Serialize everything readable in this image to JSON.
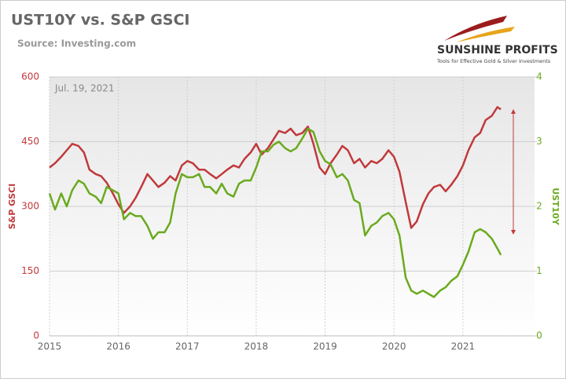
{
  "chart_data": {
    "type": "line",
    "title": "UST10Y vs. S&P GSCI",
    "subtitle": "Source: Investing.com",
    "annotation": "Jul. 19, 2021",
    "logo": {
      "name": "SUNSHINE PROFITS",
      "tagline": "Tools for Effective Gold & Silver Investments"
    },
    "ylabel": "S&P GSCI",
    "y2label": "UST10Y",
    "x": [
      2015.0,
      2015.08,
      2015.17,
      2015.25,
      2015.33,
      2015.42,
      2015.5,
      2015.58,
      2015.67,
      2015.75,
      2015.83,
      2015.92,
      2016.0,
      2016.08,
      2016.17,
      2016.25,
      2016.33,
      2016.42,
      2016.5,
      2016.58,
      2016.67,
      2016.75,
      2016.83,
      2016.92,
      2017.0,
      2017.08,
      2017.17,
      2017.25,
      2017.33,
      2017.42,
      2017.5,
      2017.58,
      2017.67,
      2017.75,
      2017.83,
      2017.92,
      2018.0,
      2018.08,
      2018.17,
      2018.25,
      2018.33,
      2018.42,
      2018.5,
      2018.58,
      2018.67,
      2018.75,
      2018.83,
      2018.92,
      2019.0,
      2019.08,
      2019.17,
      2019.25,
      2019.33,
      2019.42,
      2019.5,
      2019.58,
      2019.67,
      2019.75,
      2019.83,
      2019.92,
      2020.0,
      2020.08,
      2020.17,
      2020.25,
      2020.33,
      2020.42,
      2020.5,
      2020.58,
      2020.67,
      2020.75,
      2020.83,
      2020.92,
      2021.0,
      2021.08,
      2021.17,
      2021.25,
      2021.33,
      2021.42,
      2021.5,
      2021.55
    ],
    "series": [
      {
        "name": "S&P GSCI",
        "color": "#c0393b",
        "axis": "y",
        "values": [
          390,
          400,
          415,
          430,
          445,
          440,
          425,
          385,
          375,
          370,
          355,
          330,
          305,
          285,
          300,
          320,
          345,
          375,
          360,
          345,
          355,
          370,
          360,
          395,
          405,
          400,
          385,
          385,
          375,
          365,
          375,
          385,
          395,
          390,
          410,
          425,
          445,
          420,
          435,
          455,
          475,
          470,
          480,
          465,
          470,
          485,
          445,
          390,
          375,
          400,
          420,
          440,
          430,
          400,
          410,
          390,
          405,
          400,
          410,
          430,
          415,
          380,
          310,
          250,
          265,
          305,
          330,
          345,
          350,
          335,
          350,
          370,
          395,
          430,
          460,
          470,
          500,
          510,
          530,
          525
        ]
      },
      {
        "name": "UST10Y",
        "color": "#6aaa1e",
        "axis": "y2",
        "values": [
          2.2,
          1.95,
          2.2,
          2.0,
          2.25,
          2.4,
          2.35,
          2.2,
          2.15,
          2.05,
          2.3,
          2.25,
          2.2,
          1.8,
          1.9,
          1.85,
          1.85,
          1.7,
          1.5,
          1.6,
          1.6,
          1.75,
          2.2,
          2.5,
          2.45,
          2.45,
          2.5,
          2.3,
          2.3,
          2.2,
          2.35,
          2.2,
          2.15,
          2.35,
          2.4,
          2.4,
          2.6,
          2.85,
          2.85,
          2.95,
          3.0,
          2.9,
          2.85,
          2.9,
          3.05,
          3.2,
          3.15,
          2.85,
          2.7,
          2.65,
          2.45,
          2.5,
          2.4,
          2.1,
          2.05,
          1.55,
          1.7,
          1.75,
          1.85,
          1.9,
          1.8,
          1.55,
          0.9,
          0.7,
          0.65,
          0.7,
          0.65,
          0.6,
          0.7,
          0.75,
          0.85,
          0.92,
          1.1,
          1.3,
          1.6,
          1.65,
          1.6,
          1.5,
          1.35,
          1.25
        ]
      }
    ],
    "xlim": [
      2015,
      2022.04
    ],
    "xticks": [
      2015,
      2016,
      2017,
      2018,
      2019,
      2020,
      2021
    ],
    "ylim": [
      0,
      600
    ],
    "yticks": [
      0,
      150,
      300,
      450,
      600
    ],
    "y2lim": [
      0,
      4
    ],
    "y2ticks": [
      0,
      1,
      2,
      3,
      4
    ],
    "grid": true
  }
}
